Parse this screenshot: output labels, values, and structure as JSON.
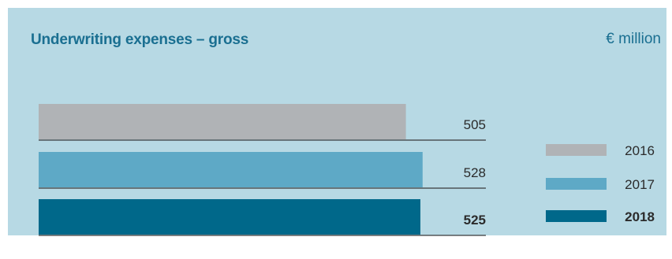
{
  "chart_data": {
    "type": "bar",
    "orientation": "horizontal",
    "title": "Underwriting expenses – gross",
    "unit": "€ million",
    "categories": [
      "2016",
      "2017",
      "2018"
    ],
    "values": [
      505,
      528,
      525
    ],
    "value_labels": [
      "505",
      "528",
      "525"
    ],
    "highlighted_category": "2018",
    "colors": [
      "#b0b3b6",
      "#5ea9c6",
      "#00688a"
    ],
    "legend": {
      "placement": "right",
      "items": [
        {
          "label": "2016",
          "color": "#b0b3b6"
        },
        {
          "label": "2017",
          "color": "#5ea9c6"
        },
        {
          "label": "2018",
          "color": "#00688a"
        }
      ]
    },
    "xlim": [
      0,
      615
    ],
    "grid": false
  },
  "colors": {
    "panel_background": "#b7d9e4",
    "title": "#1a6f91",
    "text": "#2b2b2b",
    "rule": "#3a3a3a"
  }
}
